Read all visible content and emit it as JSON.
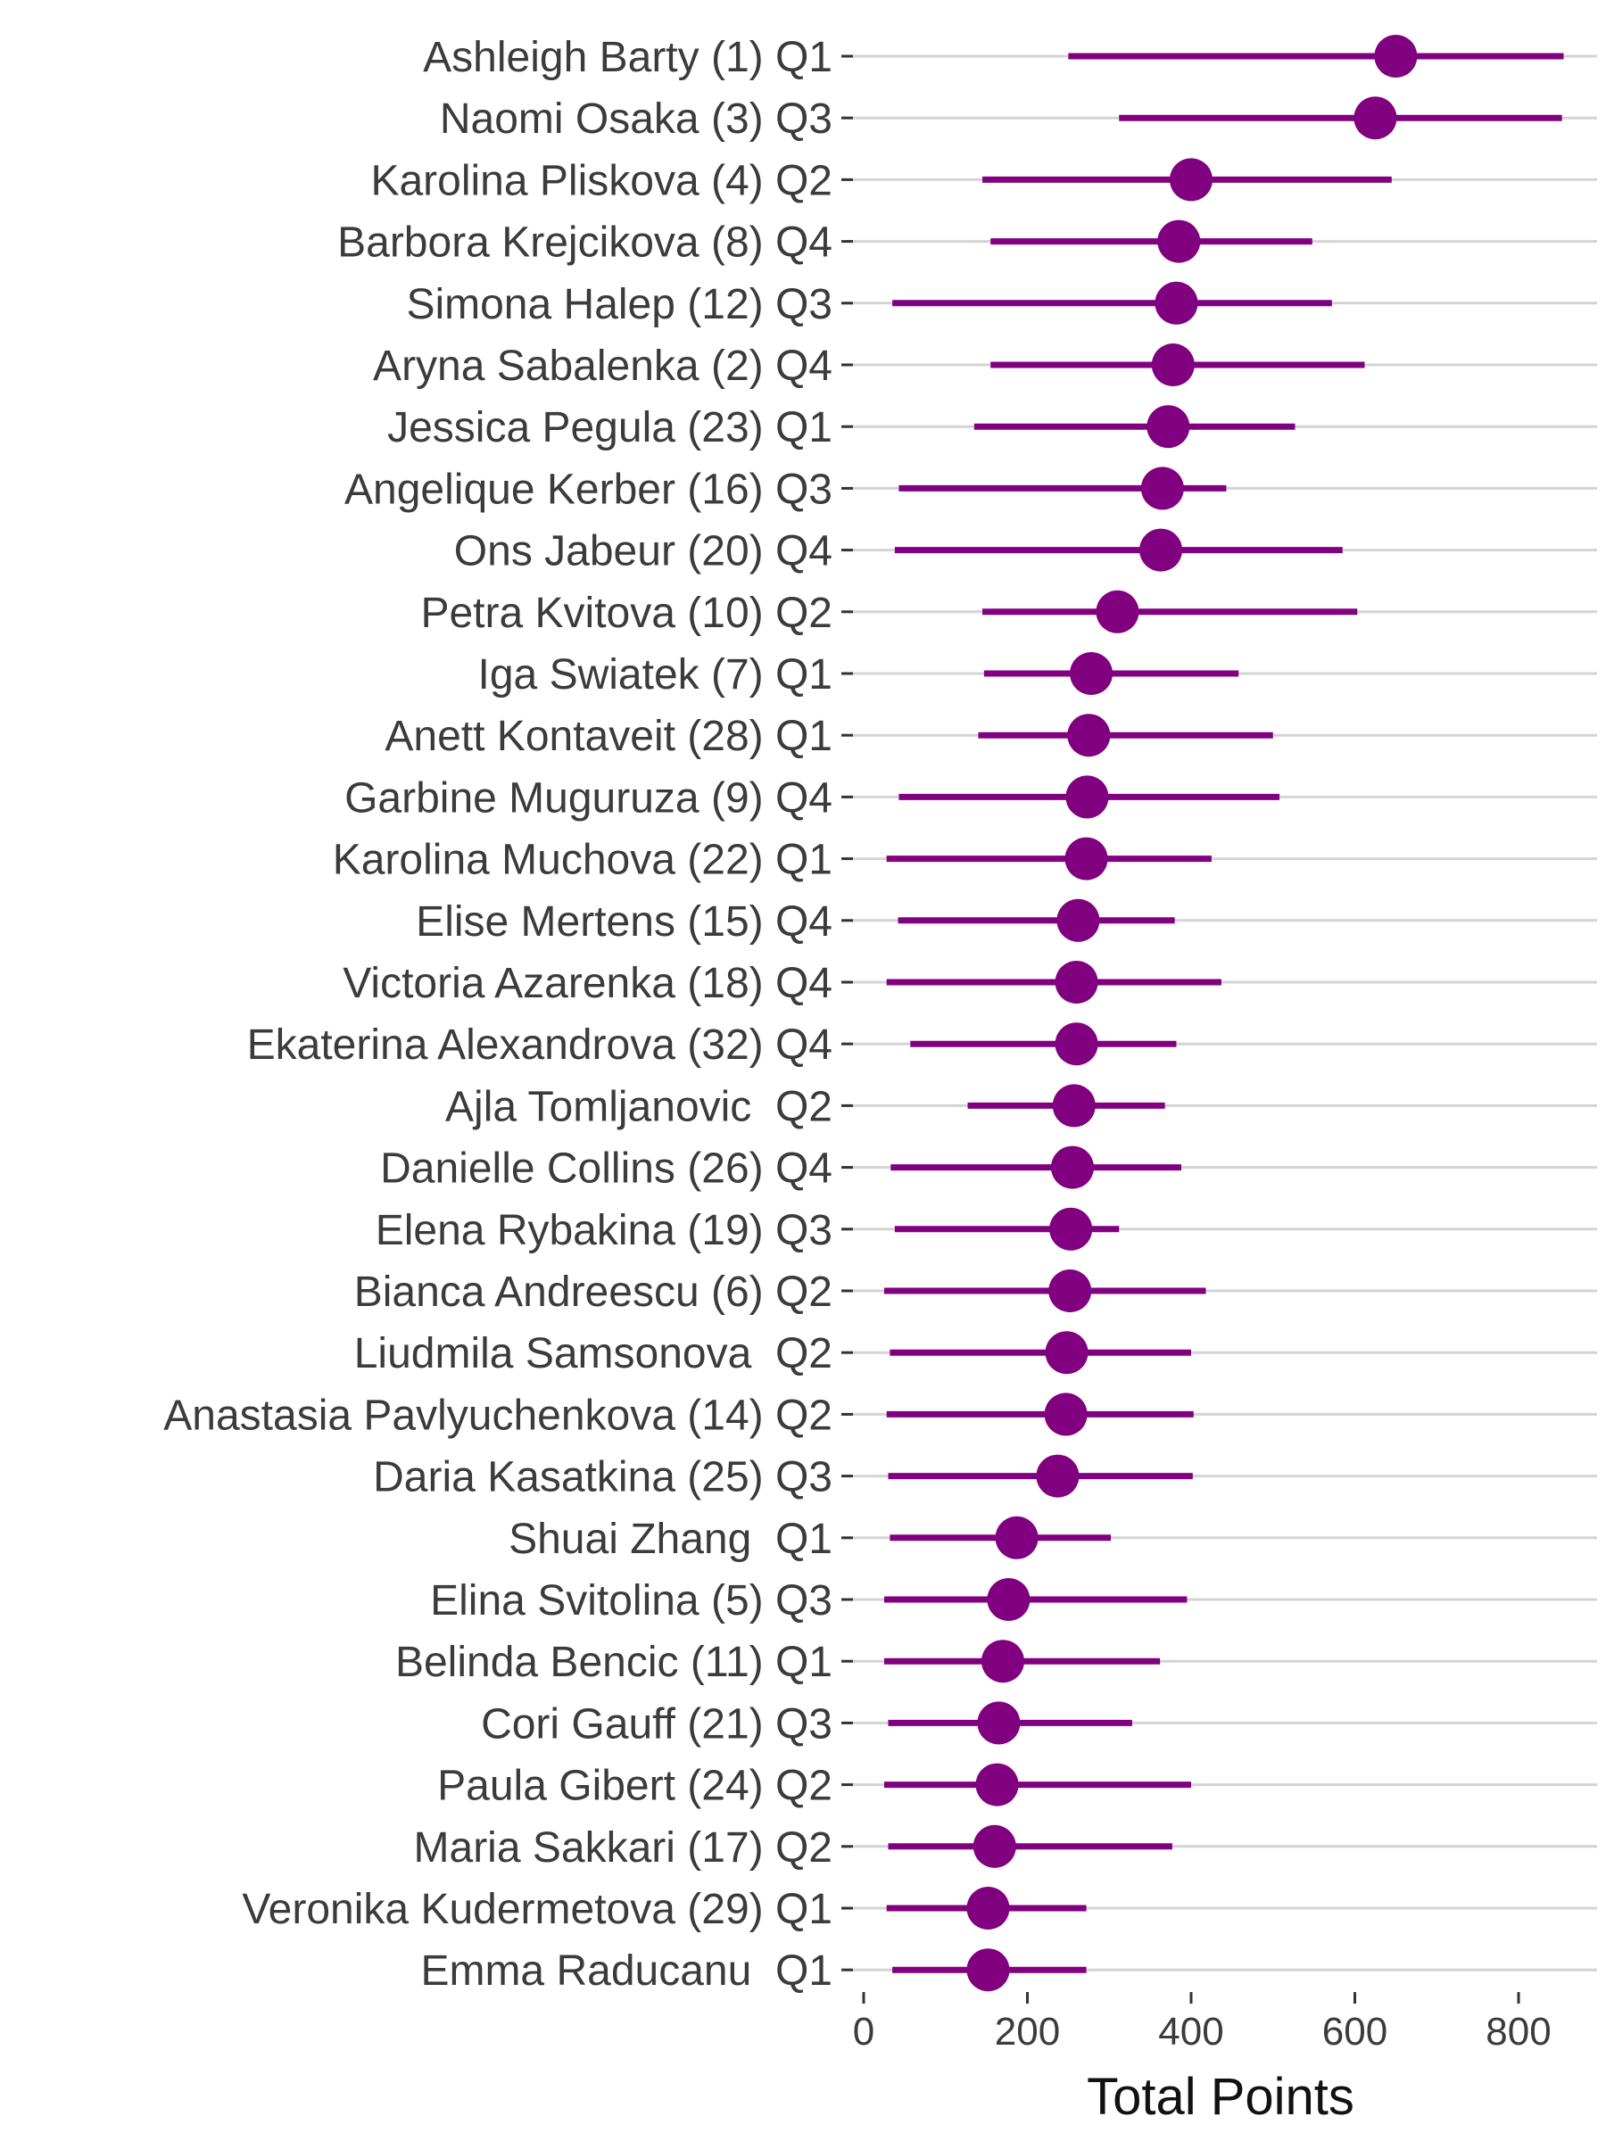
{
  "chart_data": {
    "type": "dot-range",
    "title": "",
    "xlabel": "Total Points",
    "ylabel": "",
    "xlim": [
      -20,
      890
    ],
    "xticks": [
      0,
      200,
      400,
      600,
      800
    ],
    "grid": "horizontal",
    "legend": "none",
    "colors": {
      "series": "#800080",
      "grid": "#d4d4d4",
      "text": "#3b3b3b"
    },
    "players": [
      {
        "name": "Ashleigh Barty",
        "seed": "(1)",
        "quartile": "Q1",
        "low": 250,
        "point": 650,
        "high": 855
      },
      {
        "name": "Naomi Osaka",
        "seed": "(3)",
        "quartile": "Q3",
        "low": 312,
        "point": 625,
        "high": 853
      },
      {
        "name": "Karolina Pliskova",
        "seed": "(4)",
        "quartile": "Q2",
        "low": 145,
        "point": 400,
        "high": 645
      },
      {
        "name": "Barbora Krejcikova",
        "seed": "(8)",
        "quartile": "Q4",
        "low": 155,
        "point": 385,
        "high": 548
      },
      {
        "name": "Simona Halep",
        "seed": "(12)",
        "quartile": "Q3",
        "low": 35,
        "point": 382,
        "high": 572
      },
      {
        "name": "Aryna Sabalenka",
        "seed": "(2)",
        "quartile": "Q4",
        "low": 155,
        "point": 378,
        "high": 612
      },
      {
        "name": "Jessica Pegula",
        "seed": "(23)",
        "quartile": "Q1",
        "low": 135,
        "point": 372,
        "high": 527
      },
      {
        "name": "Angelique Kerber",
        "seed": "(16)",
        "quartile": "Q3",
        "low": 43,
        "point": 365,
        "high": 443
      },
      {
        "name": "Ons Jabeur",
        "seed": "(20)",
        "quartile": "Q4",
        "low": 38,
        "point": 363,
        "high": 585
      },
      {
        "name": "Petra Kvitova",
        "seed": "(10)",
        "quartile": "Q2",
        "low": 145,
        "point": 310,
        "high": 603
      },
      {
        "name": "Iga Swiatek",
        "seed": "(7)",
        "quartile": "Q1",
        "low": 147,
        "point": 278,
        "high": 458
      },
      {
        "name": "Anett Kontaveit",
        "seed": "(28)",
        "quartile": "Q1",
        "low": 140,
        "point": 275,
        "high": 500
      },
      {
        "name": "Garbine Muguruza",
        "seed": "(9)",
        "quartile": "Q4",
        "low": 43,
        "point": 273,
        "high": 508
      },
      {
        "name": "Karolina Muchova",
        "seed": "(22)",
        "quartile": "Q1",
        "low": 28,
        "point": 272,
        "high": 425
      },
      {
        "name": "Elise Mertens",
        "seed": "(15)",
        "quartile": "Q4",
        "low": 42,
        "point": 262,
        "high": 380
      },
      {
        "name": "Victoria Azarenka",
        "seed": "(18)",
        "quartile": "Q4",
        "low": 28,
        "point": 260,
        "high": 437
      },
      {
        "name": "Ekaterina Alexandrova",
        "seed": "(32)",
        "quartile": "Q4",
        "low": 57,
        "point": 260,
        "high": 382
      },
      {
        "name": "Ajla Tomljanovic",
        "seed": "",
        "quartile": "Q2",
        "low": 127,
        "point": 257,
        "high": 368
      },
      {
        "name": "Danielle Collins",
        "seed": "(26)",
        "quartile": "Q4",
        "low": 33,
        "point": 255,
        "high": 388
      },
      {
        "name": "Elena Rybakina",
        "seed": "(19)",
        "quartile": "Q3",
        "low": 38,
        "point": 253,
        "high": 312
      },
      {
        "name": "Bianca Andreescu",
        "seed": "(6)",
        "quartile": "Q2",
        "low": 25,
        "point": 252,
        "high": 418
      },
      {
        "name": "Liudmila Samsonova",
        "seed": "",
        "quartile": "Q2",
        "low": 32,
        "point": 248,
        "high": 400
      },
      {
        "name": "Anastasia Pavlyuchenkova",
        "seed": "(14)",
        "quartile": "Q2",
        "low": 28,
        "point": 247,
        "high": 403
      },
      {
        "name": "Daria Kasatkina",
        "seed": "(25)",
        "quartile": "Q3",
        "low": 30,
        "point": 237,
        "high": 402
      },
      {
        "name": "Shuai Zhang",
        "seed": "",
        "quartile": "Q1",
        "low": 32,
        "point": 187,
        "high": 302
      },
      {
        "name": "Elina Svitolina",
        "seed": "(5)",
        "quartile": "Q3",
        "low": 25,
        "point": 177,
        "high": 395
      },
      {
        "name": "Belinda Bencic",
        "seed": "(11)",
        "quartile": "Q1",
        "low": 25,
        "point": 170,
        "high": 362
      },
      {
        "name": "Cori Gauff",
        "seed": "(21)",
        "quartile": "Q3",
        "low": 30,
        "point": 165,
        "high": 328
      },
      {
        "name": "Paula Gibert",
        "seed": "(24)",
        "quartile": "Q2",
        "low": 25,
        "point": 163,
        "high": 400
      },
      {
        "name": "Maria Sakkari",
        "seed": "(17)",
        "quartile": "Q2",
        "low": 30,
        "point": 160,
        "high": 377
      },
      {
        "name": "Veronika Kudermetova",
        "seed": "(29)",
        "quartile": "Q1",
        "low": 28,
        "point": 152,
        "high": 272
      },
      {
        "name": "Emma Raducanu",
        "seed": "",
        "quartile": "Q1",
        "low": 35,
        "point": 152,
        "high": 272
      }
    ]
  }
}
